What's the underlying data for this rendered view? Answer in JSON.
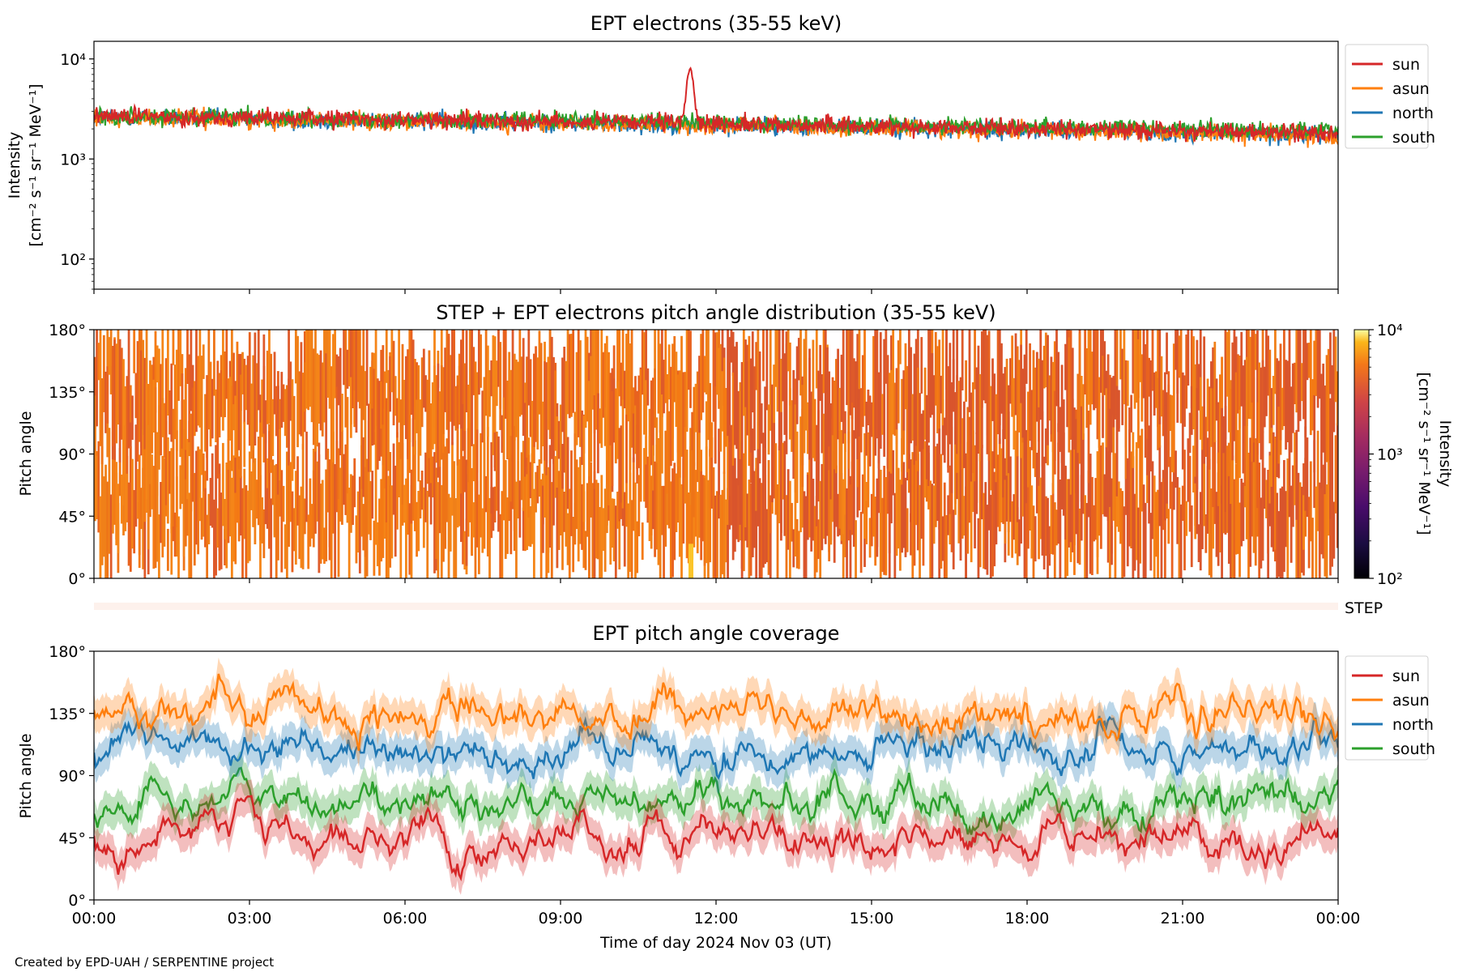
{
  "figure": {
    "credit": "Created by EPD-UAH / SERPENTINE project",
    "xlabel": "Time of day 2024 Nov 03 (UT)",
    "time_ticks": [
      "00:00",
      "03:00",
      "06:00",
      "09:00",
      "12:00",
      "15:00",
      "18:00",
      "21:00",
      "00:00"
    ]
  },
  "chart_data": [
    {
      "type": "line",
      "title": "EPT electrons (35-55 keV)",
      "ylabel": [
        "Intensity",
        "[cm⁻² s⁻¹ sr⁻¹ MeV⁻¹]"
      ],
      "yscale": "log",
      "ylim": [
        50,
        15000
      ],
      "ytick_labels": [
        "10²",
        "10³",
        "10⁴"
      ],
      "x": "00:00–24:00 UT, 1-min samples (noisy)",
      "legend_position": "outside-right",
      "series": [
        {
          "name": "sun",
          "color": "#d62728",
          "level_start": 2700,
          "level_end": 1800,
          "spike": {
            "time": "11:30",
            "value": 8000
          }
        },
        {
          "name": "asun",
          "color": "#ff7f0e",
          "level_start": 2600,
          "level_end": 1700
        },
        {
          "name": "north",
          "color": "#1f77b4",
          "level_start": 2600,
          "level_end": 1700
        },
        {
          "name": "south",
          "color": "#2ca02c",
          "level_start": 2700,
          "level_end": 1900
        }
      ]
    },
    {
      "type": "heatmap",
      "title": "STEP + EPT electrons pitch angle distribution (35-55 keV)",
      "ylabel": "Pitch angle",
      "ylim": [
        0,
        180
      ],
      "ytick_labels": [
        "0°",
        "45°",
        "90°",
        "135°",
        "180°"
      ],
      "colorbar": {
        "label": [
          "Intensity",
          "[cm⁻² s⁻¹ sr⁻¹ MeV⁻¹]"
        ],
        "scale": "log",
        "range": [
          100,
          10000
        ],
        "tick_labels": [
          "10²",
          "10³",
          "10⁴"
        ]
      },
      "typical_value": 2500,
      "step_label": "STEP"
    },
    {
      "type": "line",
      "title": "EPT pitch angle coverage",
      "ylabel": "Pitch angle",
      "ylim": [
        0,
        180
      ],
      "ytick_labels": [
        "0°",
        "45°",
        "90°",
        "135°",
        "180°"
      ],
      "legend_position": "outside-right",
      "series": [
        {
          "name": "sun",
          "color": "#d62728",
          "typical_range": [
            10,
            80
          ]
        },
        {
          "name": "asun",
          "color": "#ff7f0e",
          "typical_range": [
            100,
            170
          ]
        },
        {
          "name": "north",
          "color": "#1f77b4",
          "typical_range": [
            60,
            160
          ]
        },
        {
          "name": "south",
          "color": "#2ca02c",
          "typical_range": [
            20,
            120
          ]
        }
      ]
    }
  ]
}
